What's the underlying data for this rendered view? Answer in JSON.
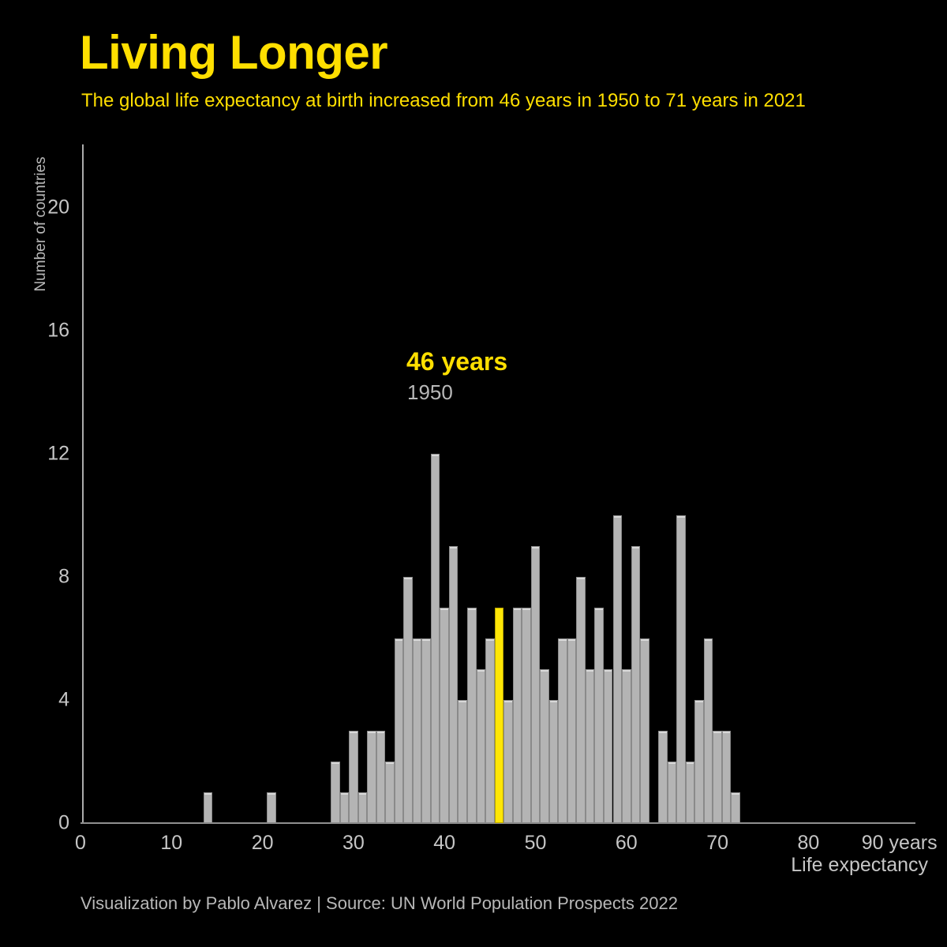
{
  "header": {
    "title": "Living Longer",
    "subtitle": "The global life expectancy at birth increased from 46 years in 1950 to 71 years in 2021"
  },
  "annotation": {
    "value_label": "46 years",
    "year_label": "1950"
  },
  "chart_data": {
    "type": "bar",
    "title": "Living Longer",
    "xlabel": "Life expectancy",
    "ylabel": "Number of countries",
    "xlim": [
      0,
      92
    ],
    "ylim": [
      0,
      22
    ],
    "grid": false,
    "legend": "none",
    "highlight_x": 46,
    "x_ticks": [
      {
        "value": 0,
        "label": "0"
      },
      {
        "value": 10,
        "label": "10"
      },
      {
        "value": 20,
        "label": "20"
      },
      {
        "value": 30,
        "label": "30"
      },
      {
        "value": 40,
        "label": "40"
      },
      {
        "value": 50,
        "label": "50"
      },
      {
        "value": 60,
        "label": "60"
      },
      {
        "value": 70,
        "label": "70"
      },
      {
        "value": 80,
        "label": "80"
      },
      {
        "value": 90,
        "label": "90 years"
      }
    ],
    "y_ticks": [
      {
        "value": 0,
        "label": "0"
      },
      {
        "value": 4,
        "label": "4"
      },
      {
        "value": 8,
        "label": "8"
      },
      {
        "value": 12,
        "label": "12"
      },
      {
        "value": 16,
        "label": "16"
      },
      {
        "value": 20,
        "label": "20"
      }
    ],
    "bars": [
      {
        "year": 14,
        "count": 1
      },
      {
        "year": 21,
        "count": 1
      },
      {
        "year": 28,
        "count": 2
      },
      {
        "year": 29,
        "count": 1
      },
      {
        "year": 30,
        "count": 3
      },
      {
        "year": 31,
        "count": 1
      },
      {
        "year": 32,
        "count": 3
      },
      {
        "year": 33,
        "count": 3
      },
      {
        "year": 34,
        "count": 2
      },
      {
        "year": 35,
        "count": 6
      },
      {
        "year": 36,
        "count": 8
      },
      {
        "year": 37,
        "count": 6
      },
      {
        "year": 38,
        "count": 6
      },
      {
        "year": 39,
        "count": 12
      },
      {
        "year": 40,
        "count": 7
      },
      {
        "year": 41,
        "count": 9
      },
      {
        "year": 42,
        "count": 4
      },
      {
        "year": 43,
        "count": 7
      },
      {
        "year": 44,
        "count": 5
      },
      {
        "year": 45,
        "count": 6
      },
      {
        "year": 46,
        "count": 7
      },
      {
        "year": 47,
        "count": 4
      },
      {
        "year": 48,
        "count": 7
      },
      {
        "year": 49,
        "count": 7
      },
      {
        "year": 50,
        "count": 9
      },
      {
        "year": 51,
        "count": 5
      },
      {
        "year": 52,
        "count": 4
      },
      {
        "year": 53,
        "count": 6
      },
      {
        "year": 54,
        "count": 6
      },
      {
        "year": 55,
        "count": 8
      },
      {
        "year": 56,
        "count": 5
      },
      {
        "year": 57,
        "count": 7
      },
      {
        "year": 58,
        "count": 5
      },
      {
        "year": 59,
        "count": 10
      },
      {
        "year": 60,
        "count": 5
      },
      {
        "year": 61,
        "count": 9
      },
      {
        "year": 62,
        "count": 6
      },
      {
        "year": 63,
        "count": 0
      },
      {
        "year": 64,
        "count": 3
      },
      {
        "year": 65,
        "count": 2
      },
      {
        "year": 66,
        "count": 10
      },
      {
        "year": 67,
        "count": 2
      },
      {
        "year": 68,
        "count": 4
      },
      {
        "year": 69,
        "count": 6
      },
      {
        "year": 70,
        "count": 3
      },
      {
        "year": 71,
        "count": 3
      },
      {
        "year": 72,
        "count": 1
      }
    ]
  },
  "footer": {
    "credit": "Visualization by Pablo Alvarez | Source: UN World Population Prospects 2022"
  },
  "colors": {
    "background": "#000000",
    "accent_yellow": "#FFDF00",
    "highlight_bar_yellow": "#FFE606",
    "bar_gray": "#B4B4B4",
    "tick_gray": "#C6C6C6",
    "muted_gray": "#B8B8B8"
  }
}
